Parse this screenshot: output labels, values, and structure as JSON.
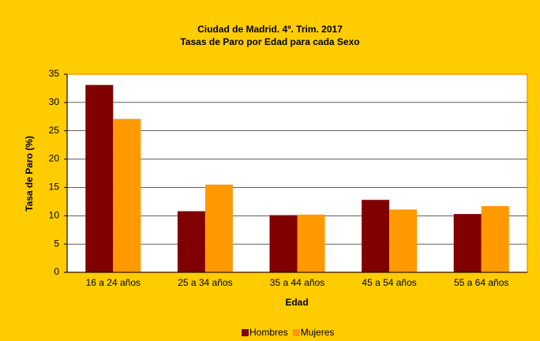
{
  "chart_data": {
    "type": "bar",
    "title": "Ciudad de Madrid. 4º. Trim. 2017",
    "subtitle": "Tasas de Paro por Edad para cada Sexo",
    "x_label": "Edad",
    "y_label": "Tasa de Paro (%)",
    "categories": [
      "16 a 24 años",
      "25 a 34 años",
      "35 a 44 años",
      "45 a 54 años",
      "55 a 64 años"
    ],
    "series": [
      {
        "name": "Hombres",
        "color": "#800000",
        "values": [
          33.1,
          10.8,
          10.1,
          12.8,
          10.3
        ]
      },
      {
        "name": "Mujeres",
        "color": "#FF9900",
        "values": [
          27.1,
          15.5,
          10.2,
          11.1,
          11.7
        ]
      }
    ],
    "ylim": [
      0,
      35
    ],
    "yticks": [
      0,
      5,
      10,
      15,
      20,
      25,
      30,
      35
    ],
    "grid": true,
    "legend": "bottom"
  }
}
